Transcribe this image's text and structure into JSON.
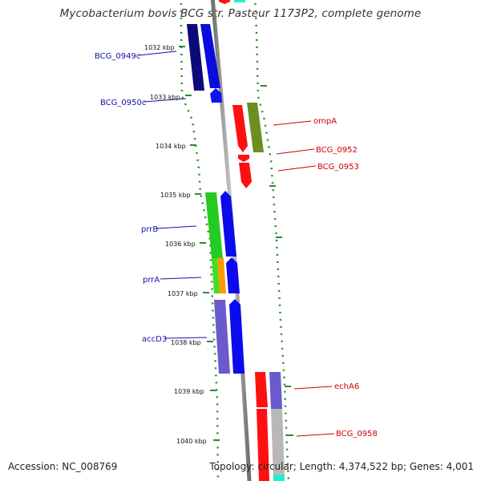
{
  "title": "Mycobacterium bovis BCG str. Pasteur 1173P2, complete genome",
  "footer": {
    "accession": "Accession: NC_008769",
    "topology": "Topology: circular; Length: 4,374,522 bp; Genes: 4,001"
  },
  "colors": {
    "backbone": "#8c8c8c",
    "gc_dots": "#2e8b2e",
    "forward_label": "#cc0000",
    "reverse_label": "#1111aa"
  },
  "ticks": [
    "1032 kbp",
    "1033 kbp",
    "1034 kbp",
    "1035 kbp",
    "1036 kbp",
    "1037 kbp",
    "1038 kbp",
    "1039 kbp",
    "1040 kbp"
  ],
  "genes": {
    "forward": [
      "ompA",
      "BCG_0952",
      "BCG_0953",
      "echA6",
      "BCG_0958"
    ],
    "reverse": [
      "BCG_0949c",
      "BCG_0950c",
      "prrB",
      "prrA",
      "accD3"
    ]
  }
}
